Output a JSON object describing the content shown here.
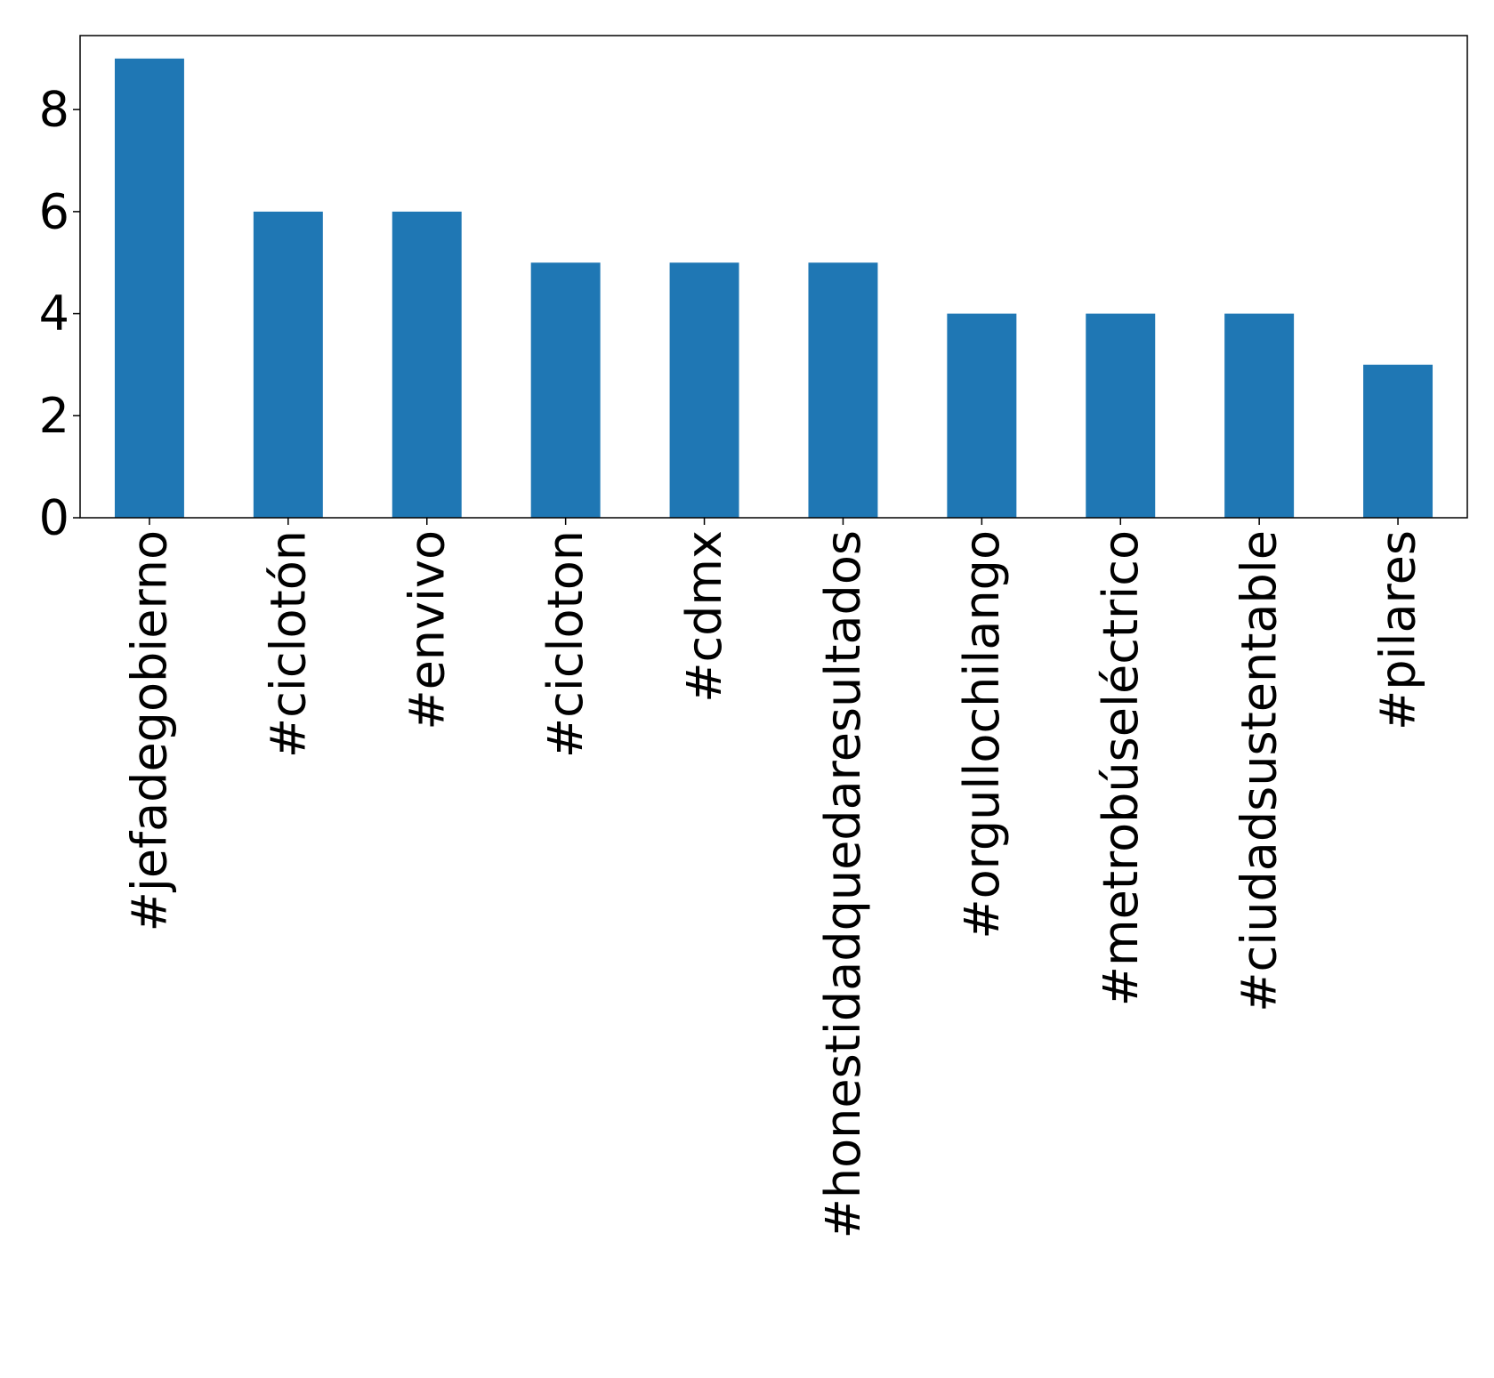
{
  "chart_data": {
    "type": "bar",
    "title": "",
    "xlabel": "",
    "ylabel": "",
    "categories": [
      "#jefadegobierno",
      "#ciclotón",
      "#envivo",
      "#cicloton",
      "#cdmx",
      "#honestidadquedaresultados",
      "#orgullochilango",
      "#metrobúseléctrico",
      "#ciudadsustentable",
      "#pilares"
    ],
    "values": [
      9,
      6,
      6,
      5,
      5,
      5,
      4,
      4,
      4,
      3
    ],
    "ylim": [
      0,
      9.45
    ],
    "yticks": [
      0,
      2,
      4,
      6,
      8
    ],
    "bar_color": "#1f77b4",
    "grid": false,
    "legend": "none"
  }
}
